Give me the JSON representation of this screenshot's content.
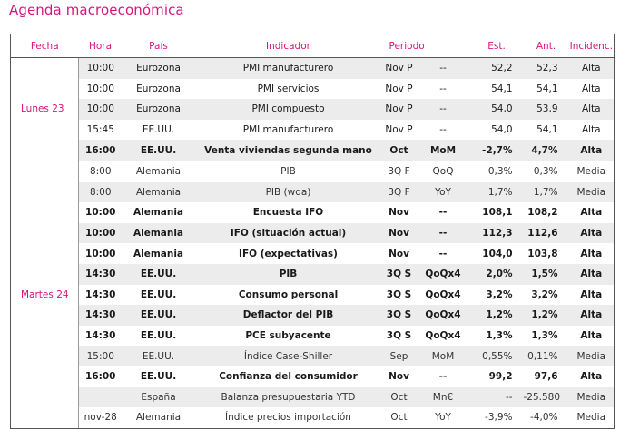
{
  "title": "Agenda macroeconómica",
  "headers": {
    "fecha": "Fecha",
    "hora": "Hora",
    "pais": "País",
    "indicador": "Indicador",
    "periodo": "Periodo",
    "est": "Est.",
    "ant": "Ant.",
    "incidencia": "Incidenc."
  },
  "groups": [
    {
      "date": "Lunes 23",
      "rows": [
        {
          "hora": "10:00",
          "pais": "Eurozona",
          "indicador": "PMI manufacturero",
          "periodo": "Nov P",
          "unidad": "--",
          "est": "52,2",
          "ant": "52,3",
          "incidencia": "Alta",
          "shaded": true,
          "bold": false
        },
        {
          "hora": "10:00",
          "pais": "Eurozona",
          "indicador": "PMI servicios",
          "periodo": "Nov P",
          "unidad": "--",
          "est": "54,1",
          "ant": "54,1",
          "incidencia": "Alta",
          "shaded": false,
          "bold": false
        },
        {
          "hora": "10:00",
          "pais": "Eurozona",
          "indicador": "PMI compuesto",
          "periodo": "Nov P",
          "unidad": "--",
          "est": "54,0",
          "ant": "53,9",
          "incidencia": "Alta",
          "shaded": true,
          "bold": false
        },
        {
          "hora": "15:45",
          "pais": "EE.UU.",
          "indicador": "PMI manufacturero",
          "periodo": "Nov P",
          "unidad": "--",
          "est": "54,0",
          "ant": "54,1",
          "incidencia": "Alta",
          "shaded": false,
          "bold": false
        },
        {
          "hora": "16:00",
          "pais": "EE.UU.",
          "indicador": "Venta viviendas segunda mano",
          "periodo": "Oct",
          "unidad": "MoM",
          "est": "-2,7%",
          "ant": "4,7%",
          "incidencia": "Alta",
          "shaded": true,
          "bold": true
        }
      ]
    },
    {
      "date": "Martes 24",
      "rows": [
        {
          "hora": "8:00",
          "pais": "Alemania",
          "indicador": "PIB",
          "periodo": "3Q F",
          "unidad": "QoQ",
          "est": "0,3%",
          "ant": "0,3%",
          "incidencia": "Media",
          "shaded": false,
          "bold": false,
          "light": true
        },
        {
          "hora": "8:00",
          "pais": "Alemania",
          "indicador": "PIB (wda)",
          "periodo": "3Q F",
          "unidad": "YoY",
          "est": "1,7%",
          "ant": "1,7%",
          "incidencia": "Media",
          "shaded": true,
          "bold": false,
          "light": true
        },
        {
          "hora": "10:00",
          "pais": "Alemania",
          "indicador": "Encuesta IFO",
          "periodo": "Nov",
          "unidad": "--",
          "est": "108,1",
          "ant": "108,2",
          "incidencia": "Alta",
          "shaded": false,
          "bold": true
        },
        {
          "hora": "10:00",
          "pais": "Alemania",
          "indicador": "IFO (situación actual)",
          "periodo": "Nov",
          "unidad": "--",
          "est": "112,3",
          "ant": "112,6",
          "incidencia": "Alta",
          "shaded": true,
          "bold": true
        },
        {
          "hora": "10:00",
          "pais": "Alemania",
          "indicador": "IFO (expectativas)",
          "periodo": "Nov",
          "unidad": "--",
          "est": "104,0",
          "ant": "103,8",
          "incidencia": "Alta",
          "shaded": false,
          "bold": true
        },
        {
          "hora": "14:30",
          "pais": "EE.UU.",
          "indicador": "PIB",
          "periodo": "3Q S",
          "unidad": "QoQx4",
          "est": "2,0%",
          "ant": "1,5%",
          "incidencia": "Alta",
          "shaded": true,
          "bold": true
        },
        {
          "hora": "14:30",
          "pais": "EE.UU.",
          "indicador": "Consumo personal",
          "periodo": "3Q S",
          "unidad": "QoQx4",
          "est": "3,2%",
          "ant": "3,2%",
          "incidencia": "Alta",
          "shaded": false,
          "bold": true
        },
        {
          "hora": "14:30",
          "pais": "EE.UU.",
          "indicador": "Deflactor del PIB",
          "periodo": "3Q S",
          "unidad": "QoQx4",
          "est": "1,2%",
          "ant": "1,2%",
          "incidencia": "Alta",
          "shaded": true,
          "bold": true
        },
        {
          "hora": "14:30",
          "pais": "EE.UU.",
          "indicador": "PCE subyacente",
          "periodo": "3Q S",
          "unidad": "QoQx4",
          "est": "1,3%",
          "ant": "1,3%",
          "incidencia": "Alta",
          "shaded": false,
          "bold": true
        },
        {
          "hora": "15:00",
          "pais": "EE.UU.",
          "indicador": "Índice Case-Shiller",
          "periodo": "Sep",
          "unidad": "MoM",
          "est": "0,55%",
          "ant": "0,11%",
          "incidencia": "Media",
          "shaded": true,
          "bold": false,
          "light": true
        },
        {
          "hora": "16:00",
          "pais": "EE.UU.",
          "indicador": "Confianza del consumidor",
          "periodo": "Nov",
          "unidad": "--",
          "est": "99,2",
          "ant": "97,6",
          "incidencia": "Alta",
          "shaded": false,
          "bold": true
        },
        {
          "hora": "",
          "pais": "España",
          "indicador": "Balanza presupuestaria YTD",
          "periodo": "Oct",
          "unidad": "Mn€",
          "est": "--",
          "ant": "-25.580",
          "incidencia": "Media",
          "shaded": true,
          "bold": false,
          "light": true
        },
        {
          "hora": "nov-28",
          "pais": "Alemania",
          "indicador": "Índice precios importación",
          "periodo": "Oct",
          "unidad": "YoY",
          "est": "-3,9%",
          "ant": "-4,0%",
          "incidencia": "Media",
          "shaded": false,
          "bold": false,
          "light": true
        }
      ]
    }
  ],
  "colors": {
    "accent": "#d6157e",
    "row_shade": "#ececec",
    "rule": "#555555"
  }
}
